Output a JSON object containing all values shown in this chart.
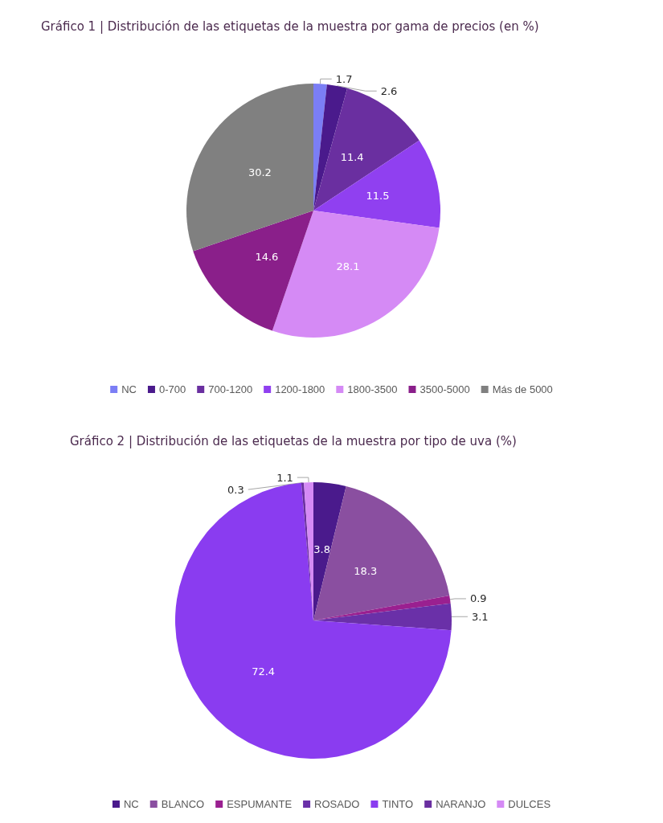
{
  "chart_data": [
    {
      "type": "pie",
      "title": "Gráfico 1 | Distribución de las etiquetas de la muestra por gama de precios (en %)",
      "categories": [
        "NC",
        "0-700",
        "700-1200",
        "1200-1800",
        "1800-3500",
        "3500-5000",
        "Más de 5000"
      ],
      "values": [
        1.7,
        2.6,
        11.4,
        11.5,
        28.1,
        14.6,
        30.2
      ],
      "colors": [
        "#7b7ef5",
        "#4a1a8c",
        "#6a2fa0",
        "#9040f0",
        "#d58af5",
        "#8a1f8a",
        "#808080"
      ],
      "data_labels": true,
      "legend": "bottom"
    },
    {
      "type": "pie",
      "title": "Gráfico 2 | Distribución de las etiquetas de la muestra por tipo de uva (%)",
      "categories": [
        "NC",
        "BLANCO",
        "ESPUMANTE",
        "ROSADO",
        "TINTO",
        "NARANJO",
        "DULCES"
      ],
      "values": [
        3.8,
        18.3,
        0.9,
        3.1,
        72.4,
        0.3,
        1.1
      ],
      "colors": [
        "#4a1a8c",
        "#8a4fa0",
        "#9a2090",
        "#6a30a8",
        "#8a3cf0",
        "#6a2fa0",
        "#d58af5"
      ],
      "data_labels": true,
      "legend": "bottom"
    }
  ]
}
